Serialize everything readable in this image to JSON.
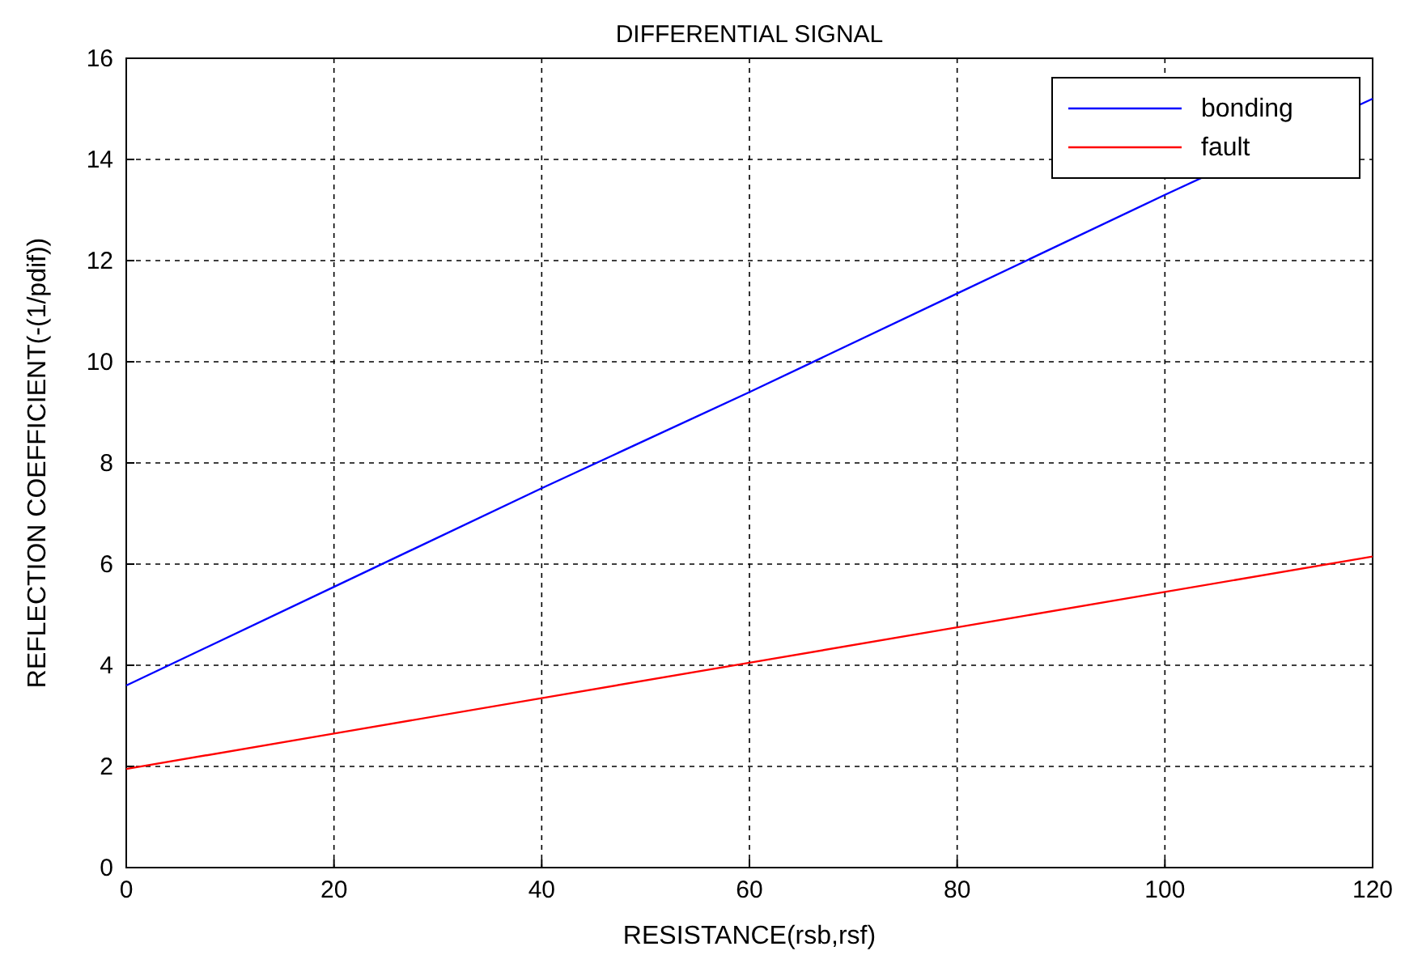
{
  "chart_data": {
    "type": "line",
    "title": "DIFFERENTIAL SIGNAL",
    "xlabel": "RESISTANCE(rsb,rsf)",
    "ylabel": "REFLECTION COEFFICIENT(-(1/pdif))",
    "x": [
      0,
      20,
      40,
      60,
      80,
      100,
      120
    ],
    "series": [
      {
        "name": "bonding",
        "color": "#0000ff",
        "values": [
          3.6,
          5.55,
          7.5,
          9.4,
          11.35,
          13.3,
          15.2
        ]
      },
      {
        "name": "fault",
        "color": "#ff0000",
        "values": [
          1.95,
          2.65,
          3.35,
          4.05,
          4.75,
          5.45,
          6.15
        ]
      }
    ],
    "xlim": [
      0,
      120
    ],
    "xticks": [
      0,
      20,
      40,
      60,
      80,
      100,
      120
    ],
    "ylim": [
      0,
      16
    ],
    "yticks": [
      0,
      2,
      4,
      6,
      8,
      10,
      12,
      14,
      16
    ],
    "grid": true,
    "legend": "top right",
    "line_style": "solid"
  }
}
